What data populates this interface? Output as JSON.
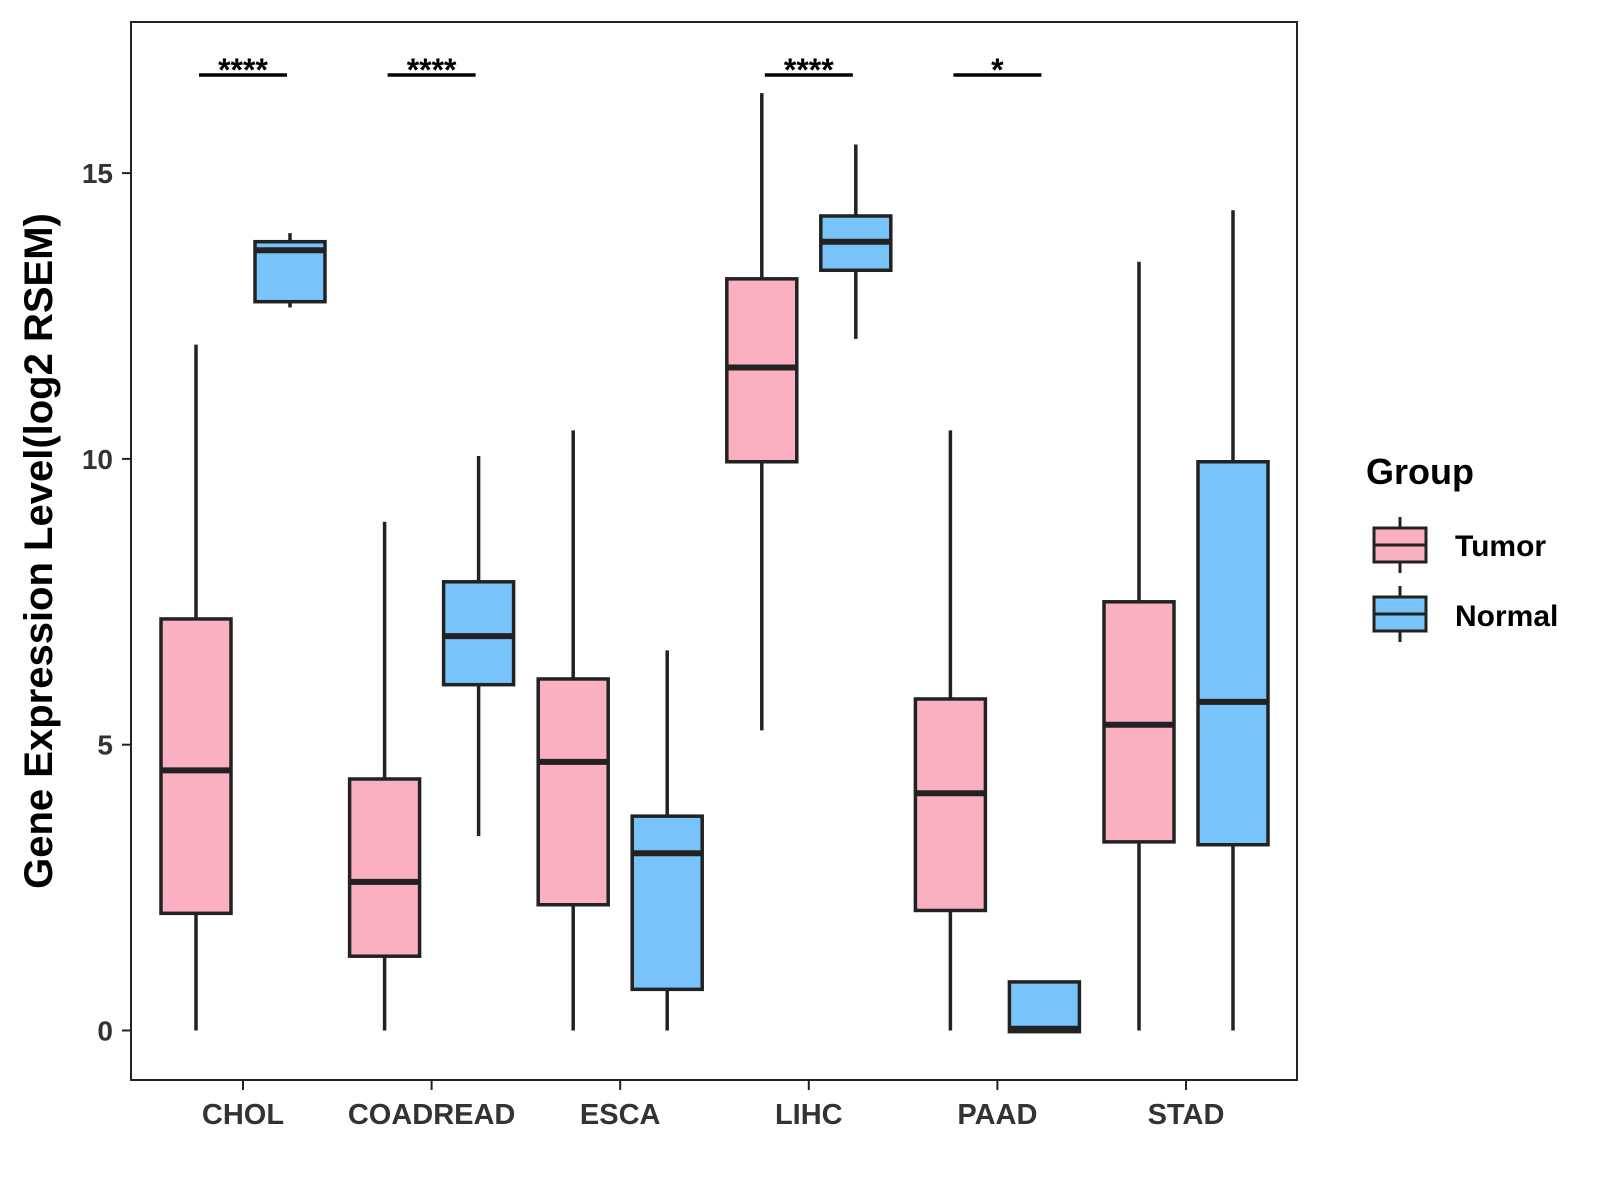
{
  "chart_data": {
    "type": "boxplot",
    "title": "",
    "xlabel": "",
    "ylabel": "Gene Expression Level(log2 RSEM)",
    "ylim": [
      -0.8,
      17.6
    ],
    "yticks": [
      0,
      5,
      10,
      15
    ],
    "ytick_labels": [
      "0",
      "5",
      "10",
      "15"
    ],
    "grid": false,
    "legend": {
      "title": "Group",
      "position": "right",
      "entries": [
        "Tumor",
        "Normal"
      ]
    },
    "colors": {
      "Tumor": "#FBB0C2",
      "Normal": "#78C3FA",
      "outline": "#222222"
    },
    "categories": [
      "CHOL",
      "COADREAD",
      "ESCA",
      "LIHC",
      "PAAD",
      "STAD"
    ],
    "series": [
      {
        "name": "Tumor",
        "boxes": [
          {
            "category": "CHOL",
            "min": 0.0,
            "q1": 2.05,
            "median": 4.55,
            "q3": 7.2,
            "max": 12.0
          },
          {
            "category": "COADREAD",
            "min": 0.0,
            "q1": 1.3,
            "median": 2.6,
            "q3": 4.4,
            "max": 8.9
          },
          {
            "category": "ESCA",
            "min": 0.0,
            "q1": 2.2,
            "median": 4.7,
            "q3": 6.15,
            "max": 10.5
          },
          {
            "category": "LIHC",
            "min": 5.25,
            "q1": 9.95,
            "median": 11.6,
            "q3": 13.15,
            "max": 16.4
          },
          {
            "category": "PAAD",
            "min": 0.0,
            "q1": 2.1,
            "median": 4.15,
            "q3": 5.8,
            "max": 10.5
          },
          {
            "category": "STAD",
            "min": 0.0,
            "q1": 3.3,
            "median": 5.35,
            "q3": 7.5,
            "max": 13.45
          }
        ]
      },
      {
        "name": "Normal",
        "boxes": [
          {
            "category": "CHOL",
            "min": 12.65,
            "q1": 12.75,
            "median": 13.65,
            "q3": 13.8,
            "max": 13.95
          },
          {
            "category": "COADREAD",
            "min": 3.4,
            "q1": 6.05,
            "median": 6.9,
            "q3": 7.85,
            "max": 10.05
          },
          {
            "category": "ESCA",
            "min": 0.0,
            "q1": 0.72,
            "median": 3.1,
            "q3": 3.75,
            "max": 6.65
          },
          {
            "category": "LIHC",
            "min": 12.1,
            "q1": 13.3,
            "median": 13.8,
            "q3": 14.25,
            "max": 15.5
          },
          {
            "category": "PAAD",
            "min": -0.02,
            "q1": -0.02,
            "median": 0.03,
            "q3": 0.85,
            "max": 0.85
          },
          {
            "category": "STAD",
            "min": 0.0,
            "q1": 3.25,
            "median": 5.75,
            "q3": 9.95,
            "max": 14.35
          }
        ]
      }
    ],
    "significance": [
      {
        "category": "CHOL",
        "label": "****"
      },
      {
        "category": "COADREAD",
        "label": "****"
      },
      {
        "category": "LIHC",
        "label": "****"
      },
      {
        "category": "PAAD",
        "label": "*"
      }
    ]
  }
}
